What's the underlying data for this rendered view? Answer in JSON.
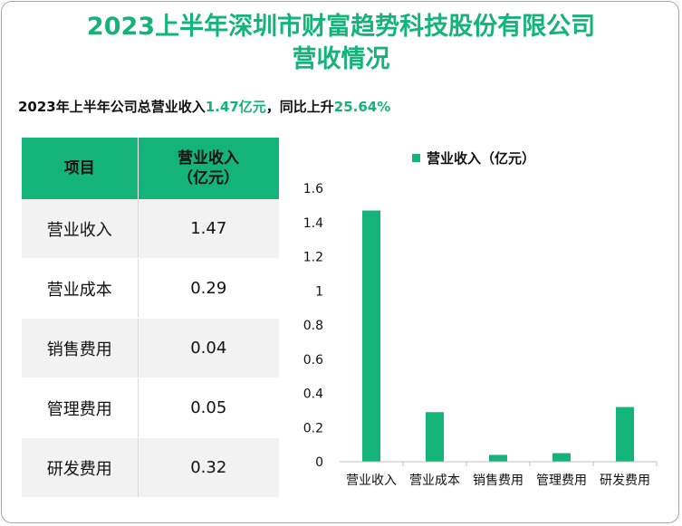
{
  "title_line1": "2023上半年深圳市财富趋势科技股份有限公司",
  "title_line2": "营收情况",
  "subtitle": {
    "prefix": "2023年上半年公司总营业收入",
    "revenue": "1.47亿元",
    "middle": "，同比上升",
    "growth": "25.64%"
  },
  "table": {
    "header_item": "项目",
    "header_value_line1": "营业收入",
    "header_value_line2": "（亿元）",
    "rows": [
      {
        "name": "营业收入",
        "value": "1.47"
      },
      {
        "name": "营业成本",
        "value": "0.29"
      },
      {
        "name": "销售费用",
        "value": "0.04"
      },
      {
        "name": "管理费用",
        "value": "0.05"
      },
      {
        "name": "研发费用",
        "value": "0.32"
      }
    ]
  },
  "chart_data": {
    "type": "bar",
    "categories": [
      "营业收入",
      "营业成本",
      "销售费用",
      "管理费用",
      "研发费用"
    ],
    "series": [
      {
        "name": "营业收入（亿元）",
        "values": [
          1.47,
          0.29,
          0.04,
          0.05,
          0.32
        ],
        "color": "#13b37a"
      }
    ],
    "yticks": [
      "0",
      "0.2",
      "0.4",
      "0.6",
      "0.8",
      "1",
      "1.2",
      "1.4",
      "1.6"
    ],
    "ylim": [
      0,
      1.6
    ],
    "grid": false,
    "legend": "top"
  }
}
